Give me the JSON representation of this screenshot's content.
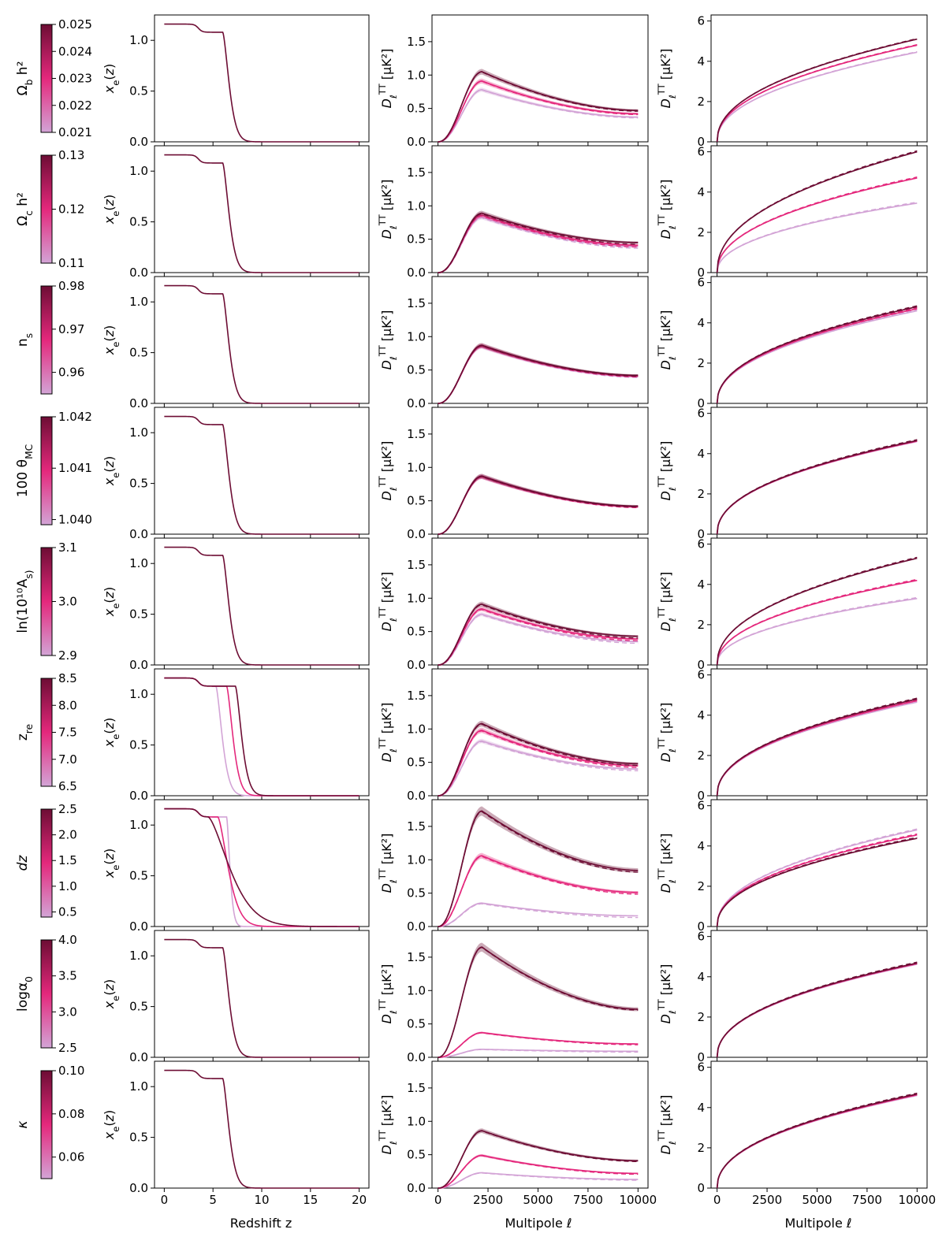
{
  "figure": {
    "colors": {
      "low": "#d3a4d6",
      "mid": "#e4287c",
      "high": "#6d0d34",
      "frame": "#000000"
    },
    "labels": {
      "xe_ylabel": "x_e(z)",
      "xe_xlabel": "Redshift z",
      "dl_ylabel": "D_ℓ^TT [μK²]",
      "dl_xlabel": "Multipole ℓ"
    }
  },
  "chart_data": [
    {
      "row": 0,
      "param_label": "Ω_b h²",
      "colorbar_ticks": [
        "0.021",
        "0.022",
        "0.023",
        "0.024",
        "0.025"
      ],
      "colorbar_range": [
        0.021,
        0.025
      ],
      "xe": {
        "type": "line",
        "xlim": [
          -1,
          21
        ],
        "ylim": [
          0,
          1.25
        ],
        "xticks": [
          0,
          5,
          10,
          15,
          20
        ],
        "yticks": [
          "0.0",
          "0.5",
          "1.0"
        ],
        "curves": [
          {
            "color": "high",
            "z_re": 6.0,
            "dz": 0.5
          }
        ]
      },
      "ksz": {
        "type": "line",
        "xlim": [
          -300,
          10500
        ],
        "ylim": [
          0,
          1.9
        ],
        "xticks": [
          0,
          2500,
          5000,
          7500,
          10000
        ],
        "yticks": [
          "0.0",
          "0.5",
          "1.0",
          "1.5"
        ],
        "peak_ell": 2200,
        "peaks": [
          0.78,
          0.91,
          1.05
        ],
        "tails": [
          0.37,
          0.42,
          0.47
        ],
        "dashed_offset": -0.01
      },
      "cum": {
        "type": "line",
        "xlim": [
          -300,
          10500
        ],
        "ylim": [
          0,
          6.3
        ],
        "xticks": [
          0,
          2500,
          5000,
          7500,
          10000
        ],
        "yticks": [
          "0",
          "2",
          "4",
          "6"
        ],
        "finals": [
          4.45,
          4.8,
          5.1
        ],
        "dashed_offset": 0.03
      }
    },
    {
      "row": 1,
      "param_label": "Ω_c h²",
      "colorbar_ticks": [
        "0.11",
        "0.12",
        "0.13"
      ],
      "colorbar_range": [
        0.11,
        0.13
      ],
      "xe": {
        "type": "line",
        "xlim": [
          -1,
          21
        ],
        "ylim": [
          0,
          1.25
        ],
        "xticks": [
          0,
          5,
          10,
          15,
          20
        ],
        "yticks": [
          "0.0",
          "0.5",
          "1.0"
        ],
        "curves": [
          {
            "color": "high",
            "z_re": 6.0,
            "dz": 0.5
          }
        ]
      },
      "ksz": {
        "type": "line",
        "xlim": [
          -300,
          10500
        ],
        "ylim": [
          0,
          1.9
        ],
        "xticks": [
          0,
          2500,
          5000,
          7500,
          10000
        ],
        "yticks": [
          "0.0",
          "0.5",
          "1.0",
          "1.5"
        ],
        "peak_ell": 2200,
        "peaks": [
          0.83,
          0.86,
          0.89
        ],
        "tails": [
          0.39,
          0.41,
          0.45
        ],
        "dashed_offset": -0.02
      },
      "cum": {
        "type": "line",
        "xlim": [
          -300,
          10500
        ],
        "ylim": [
          0,
          6.3
        ],
        "xticks": [
          0,
          2500,
          5000,
          7500,
          10000
        ],
        "yticks": [
          "0",
          "2",
          "4",
          "6"
        ],
        "finals": [
          3.45,
          4.7,
          6.0
        ],
        "dashed_offset": 0.05
      }
    },
    {
      "row": 2,
      "param_label": "n_s",
      "colorbar_ticks": [
        "0.96",
        "0.97",
        "0.98"
      ],
      "colorbar_range": [
        0.955,
        0.98
      ],
      "xe": {
        "type": "line",
        "xlim": [
          -1,
          21
        ],
        "ylim": [
          0,
          1.25
        ],
        "xticks": [
          0,
          5,
          10,
          15,
          20
        ],
        "yticks": [
          "0.0",
          "0.5",
          "1.0"
        ],
        "curves": [
          {
            "color": "high",
            "z_re": 6.0,
            "dz": 0.5
          }
        ]
      },
      "ksz": {
        "type": "line",
        "xlim": [
          -300,
          10500
        ],
        "ylim": [
          0,
          1.9
        ],
        "xticks": [
          0,
          2500,
          5000,
          7500,
          10000
        ],
        "yticks": [
          "0.0",
          "0.5",
          "1.0",
          "1.5"
        ],
        "peak_ell": 2200,
        "peaks": [
          0.85,
          0.86,
          0.87
        ],
        "tails": [
          0.4,
          0.41,
          0.42
        ],
        "dashed_offset": -0.01
      },
      "cum": {
        "type": "line",
        "xlim": [
          -300,
          10500
        ],
        "ylim": [
          0,
          6.3
        ],
        "xticks": [
          0,
          2500,
          5000,
          7500,
          10000
        ],
        "yticks": [
          "0",
          "2",
          "4",
          "6"
        ],
        "finals": [
          4.6,
          4.7,
          4.8
        ],
        "dashed_offset": 0.05
      }
    },
    {
      "row": 3,
      "param_label": "100 θ_MC",
      "colorbar_ticks": [
        "1.040",
        "1.041",
        "1.042"
      ],
      "colorbar_range": [
        1.0399,
        1.042
      ],
      "xe": {
        "type": "line",
        "xlim": [
          -1,
          21
        ],
        "ylim": [
          0,
          1.25
        ],
        "xticks": [
          0,
          5,
          10,
          15,
          20
        ],
        "yticks": [
          "0.0",
          "0.5",
          "1.0"
        ],
        "curves": [
          {
            "color": "high",
            "z_re": 6.0,
            "dz": 0.5
          }
        ]
      },
      "ksz": {
        "type": "line",
        "xlim": [
          -300,
          10500
        ],
        "ylim": [
          0,
          1.9
        ],
        "xticks": [
          0,
          2500,
          5000,
          7500,
          10000
        ],
        "yticks": [
          "0.0",
          "0.5",
          "1.0",
          "1.5"
        ],
        "peak_ell": 2200,
        "peaks": [
          0.86,
          0.86,
          0.87
        ],
        "tails": [
          0.41,
          0.41,
          0.42
        ],
        "dashed_offset": -0.01
      },
      "cum": {
        "type": "line",
        "xlim": [
          -300,
          10500
        ],
        "ylim": [
          0,
          6.3
        ],
        "xticks": [
          0,
          2500,
          5000,
          7500,
          10000
        ],
        "yticks": [
          "0",
          "2",
          "4",
          "6"
        ],
        "finals": [
          4.6,
          4.62,
          4.65
        ],
        "dashed_offset": 0.05
      }
    },
    {
      "row": 4,
      "param_label": "ln(10¹⁰A_s)",
      "colorbar_ticks": [
        "2.9",
        "3.0",
        "3.1"
      ],
      "colorbar_range": [
        2.9,
        3.1
      ],
      "xe": {
        "type": "line",
        "xlim": [
          -1,
          21
        ],
        "ylim": [
          0,
          1.25
        ],
        "xticks": [
          0,
          5,
          10,
          15,
          20
        ],
        "yticks": [
          "0.0",
          "0.5",
          "1.0"
        ],
        "curves": [
          {
            "color": "high",
            "z_re": 6.0,
            "dz": 0.5
          }
        ]
      },
      "ksz": {
        "type": "line",
        "xlim": [
          -300,
          10500
        ],
        "ylim": [
          0,
          1.9
        ],
        "xticks": [
          0,
          2500,
          5000,
          7500,
          10000
        ],
        "yticks": [
          "0.0",
          "0.5",
          "1.0",
          "1.5"
        ],
        "peak_ell": 2200,
        "peaks": [
          0.76,
          0.84,
          0.91
        ],
        "tails": [
          0.35,
          0.39,
          0.43
        ],
        "dashed_offset": -0.02
      },
      "cum": {
        "type": "line",
        "xlim": [
          -300,
          10500
        ],
        "ylim": [
          0,
          6.3
        ],
        "xticks": [
          0,
          2500,
          5000,
          7500,
          10000
        ],
        "yticks": [
          "0",
          "2",
          "4",
          "6"
        ],
        "finals": [
          3.3,
          4.2,
          5.3
        ],
        "dashed_offset": 0.05
      }
    },
    {
      "row": 5,
      "param_label": "z_re",
      "colorbar_ticks": [
        "6.5",
        "7.0",
        "7.5",
        "8.0",
        "8.5"
      ],
      "colorbar_range": [
        6.5,
        8.5
      ],
      "xe": {
        "type": "line",
        "xlim": [
          -1,
          21
        ],
        "ylim": [
          0,
          1.25
        ],
        "xticks": [
          0,
          5,
          10,
          15,
          20
        ],
        "yticks": [
          "0.0",
          "0.5",
          "1.0"
        ],
        "curves": [
          {
            "color": "low",
            "z_re": 5.3,
            "dz": 0.5
          },
          {
            "color": "mid",
            "z_re": 6.4,
            "dz": 0.5
          },
          {
            "color": "high",
            "z_re": 7.3,
            "dz": 0.5
          }
        ]
      },
      "ksz": {
        "type": "line",
        "xlim": [
          -300,
          10500
        ],
        "ylim": [
          0,
          1.9
        ],
        "xticks": [
          0,
          2500,
          5000,
          7500,
          10000
        ],
        "yticks": [
          "0.0",
          "0.5",
          "1.0",
          "1.5"
        ],
        "peak_ell": 2200,
        "peaks": [
          0.82,
          0.98,
          1.08
        ],
        "tails": [
          0.4,
          0.45,
          0.48
        ],
        "dashed_offset": -0.02
      },
      "cum": {
        "type": "line",
        "xlim": [
          -300,
          10500
        ],
        "ylim": [
          0,
          6.3
        ],
        "xticks": [
          0,
          2500,
          5000,
          7500,
          10000
        ],
        "yticks": [
          "0",
          "2",
          "4",
          "6"
        ],
        "finals": [
          4.65,
          4.72,
          4.8
        ],
        "dashed_offset": 0.05
      }
    },
    {
      "row": 6,
      "param_label": "dz",
      "colorbar_ticks": [
        "0.5",
        "1.0",
        "1.5",
        "2.0",
        "2.5"
      ],
      "colorbar_range": [
        0.4,
        2.5
      ],
      "xe": {
        "type": "line",
        "xlim": [
          -1,
          21
        ],
        "ylim": [
          0,
          1.25
        ],
        "xticks": [
          0,
          5,
          10,
          15,
          20
        ],
        "yticks": [
          "0.0",
          "0.5",
          "1.0"
        ],
        "curves": [
          {
            "color": "low",
            "z_re": 6.4,
            "dz": 0.12
          },
          {
            "color": "mid",
            "z_re": 5.5,
            "dz": 1.0
          },
          {
            "color": "high",
            "z_re": 4.5,
            "dz": 2.4
          }
        ]
      },
      "ksz": {
        "type": "line",
        "xlim": [
          -300,
          10500
        ],
        "ylim": [
          0,
          1.9
        ],
        "xticks": [
          0,
          2500,
          5000,
          7500,
          10000
        ],
        "yticks": [
          "0.0",
          "0.5",
          "1.0",
          "1.5"
        ],
        "peak_ell": 2200,
        "peaks": [
          0.35,
          1.06,
          1.73
        ],
        "tails": [
          0.16,
          0.51,
          0.84
        ],
        "dashed_offset": -0.02
      },
      "cum": {
        "type": "line",
        "xlim": [
          -300,
          10500
        ],
        "ylim": [
          0,
          6.3
        ],
        "xticks": [
          0,
          2500,
          5000,
          7500,
          10000
        ],
        "yticks": [
          "0",
          "2",
          "4",
          "6"
        ],
        "finals": [
          4.8,
          4.55,
          4.38
        ],
        "dashed_offset": 0.05
      }
    },
    {
      "row": 7,
      "param_label": "logα_0",
      "colorbar_ticks": [
        "2.5",
        "3.0",
        "3.5",
        "4.0"
      ],
      "colorbar_range": [
        2.5,
        4.0
      ],
      "xe": {
        "type": "line",
        "xlim": [
          -1,
          21
        ],
        "ylim": [
          0,
          1.25
        ],
        "xticks": [
          0,
          5,
          10,
          15,
          20
        ],
        "yticks": [
          "0.0",
          "0.5",
          "1.0"
        ],
        "curves": [
          {
            "color": "high",
            "z_re": 6.0,
            "dz": 0.5
          }
        ]
      },
      "ksz": {
        "type": "line",
        "xlim": [
          -300,
          10500
        ],
        "ylim": [
          0,
          1.9
        ],
        "xticks": [
          0,
          2500,
          5000,
          7500,
          10000
        ],
        "yticks": [
          "0.0",
          "0.5",
          "1.0",
          "1.5"
        ],
        "peak_ell": 2200,
        "peaks": [
          0.12,
          0.37,
          1.65
        ],
        "tails": [
          0.09,
          0.2,
          0.72
        ],
        "dashed_offset": -0.01
      },
      "cum": {
        "type": "line",
        "xlim": [
          -300,
          10500
        ],
        "ylim": [
          0,
          6.3
        ],
        "xticks": [
          0,
          2500,
          5000,
          7500,
          10000
        ],
        "yticks": [
          "0",
          "2",
          "4",
          "6"
        ],
        "finals": [
          4.62,
          4.65,
          4.68
        ],
        "dashed_offset": 0.05
      }
    },
    {
      "row": 8,
      "param_label": "κ",
      "colorbar_ticks": [
        "0.06",
        "0.08",
        "0.10"
      ],
      "colorbar_range": [
        0.05,
        0.1
      ],
      "xe": {
        "type": "line",
        "xlim": [
          -1,
          21
        ],
        "ylim": [
          0,
          1.25
        ],
        "xticks": [
          0,
          5,
          10,
          15,
          20
        ],
        "yticks": [
          "0.0",
          "0.5",
          "1.0"
        ],
        "curves": [
          {
            "color": "high",
            "z_re": 6.0,
            "dz": 0.5
          }
        ]
      },
      "ksz": {
        "type": "line",
        "xlim": [
          -300,
          10500
        ],
        "ylim": [
          0,
          1.9
        ],
        "xticks": [
          0,
          2500,
          5000,
          7500,
          10000
        ],
        "yticks": [
          "0.0",
          "0.5",
          "1.0",
          "1.5"
        ],
        "peak_ell": 2200,
        "peaks": [
          0.23,
          0.49,
          0.86
        ],
        "tails": [
          0.13,
          0.22,
          0.41
        ],
        "dashed_offset": -0.01
      },
      "cum": {
        "type": "line",
        "xlim": [
          -300,
          10500
        ],
        "ylim": [
          0,
          6.3
        ],
        "xticks": [
          0,
          2500,
          5000,
          7500,
          10000
        ],
        "yticks": [
          "0",
          "2",
          "4",
          "6"
        ],
        "finals": [
          4.6,
          4.63,
          4.67
        ],
        "dashed_offset": 0.05
      }
    }
  ]
}
